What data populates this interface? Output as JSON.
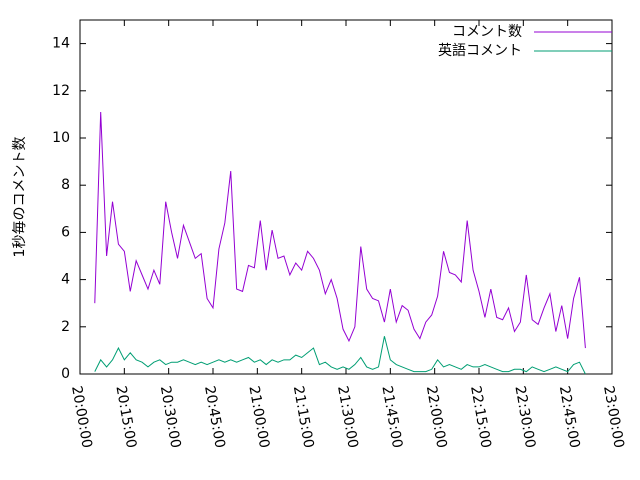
{
  "chart_data": {
    "type": "line",
    "y_label": "1秒毎のコメント数",
    "x": [
      "20:05:00",
      "20:07:00",
      "20:09:00",
      "20:11:00",
      "20:13:00",
      "20:15:00",
      "20:17:00",
      "20:19:00",
      "20:21:00",
      "20:23:00",
      "20:25:00",
      "20:27:00",
      "20:29:00",
      "20:31:00",
      "20:33:00",
      "20:35:00",
      "20:37:00",
      "20:39:00",
      "20:41:00",
      "20:43:00",
      "20:45:00",
      "20:47:00",
      "20:49:00",
      "20:51:00",
      "20:53:00",
      "20:55:00",
      "20:57:00",
      "20:59:00",
      "21:01:00",
      "21:03:00",
      "21:05:00",
      "21:07:00",
      "21:09:00",
      "21:11:00",
      "21:13:00",
      "21:15:00",
      "21:17:00",
      "21:19:00",
      "21:21:00",
      "21:23:00",
      "21:25:00",
      "21:27:00",
      "21:29:00",
      "21:31:00",
      "21:33:00",
      "21:35:00",
      "21:37:00",
      "21:39:00",
      "21:41:00",
      "21:43:00",
      "21:45:00",
      "21:47:00",
      "21:49:00",
      "21:51:00",
      "21:53:00",
      "21:55:00",
      "21:57:00",
      "21:59:00",
      "22:01:00",
      "22:03:00",
      "22:05:00",
      "22:07:00",
      "22:09:00",
      "22:11:00",
      "22:13:00",
      "22:15:00",
      "22:17:00",
      "22:19:00",
      "22:21:00",
      "22:23:00",
      "22:25:00",
      "22:27:00",
      "22:29:00",
      "22:31:00",
      "22:33:00",
      "22:35:00",
      "22:37:00",
      "22:39:00",
      "22:41:00",
      "22:43:00",
      "22:45:00",
      "22:47:00",
      "22:49:00",
      "22:51:00"
    ],
    "series": [
      {
        "name": "コメント数",
        "color": "#9400d3",
        "values": [
          3.0,
          11.1,
          5.0,
          7.3,
          5.5,
          5.2,
          3.5,
          4.8,
          4.2,
          3.6,
          4.4,
          3.8,
          7.3,
          6.0,
          4.9,
          6.3,
          5.6,
          4.9,
          5.1,
          3.2,
          2.8,
          5.3,
          6.4,
          8.6,
          3.6,
          3.5,
          4.6,
          4.5,
          6.5,
          4.4,
          6.1,
          4.9,
          5.0,
          4.2,
          4.7,
          4.4,
          5.2,
          4.9,
          4.4,
          3.4,
          4.0,
          3.2,
          1.9,
          1.4,
          2.0,
          5.4,
          3.6,
          3.2,
          3.1,
          2.2,
          3.6,
          2.2,
          2.9,
          2.7,
          1.9,
          1.5,
          2.2,
          2.5,
          3.3,
          5.2,
          4.3,
          4.2,
          3.9,
          6.5,
          4.4,
          3.5,
          2.4,
          3.6,
          2.4,
          2.3,
          2.8,
          1.8,
          2.2,
          4.2,
          2.3,
          2.1,
          2.8,
          3.4,
          1.8,
          2.9,
          1.5,
          3.2,
          4.1,
          1.1
        ]
      },
      {
        "name": "英語コメント",
        "color": "#009e73",
        "values": [
          0.1,
          0.6,
          0.3,
          0.6,
          1.1,
          0.6,
          0.9,
          0.6,
          0.5,
          0.3,
          0.5,
          0.6,
          0.4,
          0.5,
          0.5,
          0.6,
          0.5,
          0.4,
          0.5,
          0.4,
          0.5,
          0.6,
          0.5,
          0.6,
          0.5,
          0.6,
          0.7,
          0.5,
          0.6,
          0.4,
          0.6,
          0.5,
          0.6,
          0.6,
          0.8,
          0.7,
          0.9,
          1.1,
          0.4,
          0.5,
          0.3,
          0.2,
          0.3,
          0.2,
          0.4,
          0.7,
          0.3,
          0.2,
          0.3,
          1.6,
          0.6,
          0.4,
          0.3,
          0.2,
          0.1,
          0.1,
          0.1,
          0.2,
          0.6,
          0.3,
          0.4,
          0.3,
          0.2,
          0.4,
          0.3,
          0.3,
          0.4,
          0.3,
          0.2,
          0.1,
          0.1,
          0.2,
          0.2,
          0.1,
          0.3,
          0.2,
          0.1,
          0.2,
          0.3,
          0.2,
          0.1,
          0.4,
          0.5,
          0.0
        ]
      }
    ],
    "xlim": [
      "20:00:00",
      "23:00:00"
    ],
    "xticks": [
      "20:00:00",
      "20:15:00",
      "20:30:00",
      "20:45:00",
      "21:00:00",
      "21:15:00",
      "21:30:00",
      "21:45:00",
      "22:00:00",
      "22:15:00",
      "22:30:00",
      "22:45:00",
      "23:00:00"
    ],
    "ylim": [
      0,
      15
    ],
    "yticks": [
      0,
      2,
      4,
      6,
      8,
      10,
      12,
      14
    ],
    "legend": "top-right"
  }
}
